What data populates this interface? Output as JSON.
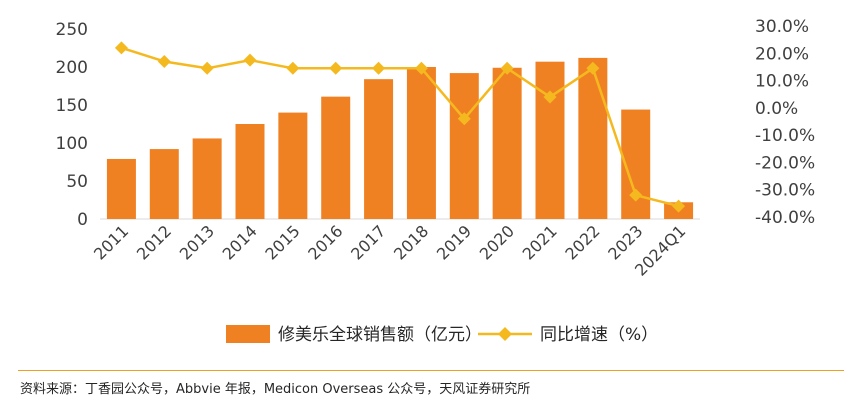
{
  "chart_data": {
    "type": "bar+line",
    "categories": [
      "2011",
      "2012",
      "2013",
      "2014",
      "2015",
      "2016",
      "2017",
      "2018",
      "2019",
      "2020",
      "2021",
      "2022",
      "2023",
      "2024Q1"
    ],
    "series": [
      {
        "name": "修美乐全球销售额（亿元）",
        "type": "bar",
        "axis": "left",
        "values": [
          79,
          92,
          106,
          125,
          140,
          161,
          184,
          200,
          192,
          199,
          207,
          212,
          144,
          22
        ]
      },
      {
        "name": "同比增速（%）",
        "type": "line",
        "axis": "right",
        "values": [
          22,
          17,
          14.5,
          17.5,
          14.5,
          14.5,
          14.5,
          14.5,
          -4,
          14.5,
          4,
          14.5,
          -32,
          -36
        ]
      }
    ],
    "y_left": {
      "min": 0,
      "max": 250,
      "ticks": [
        "0",
        "50",
        "100",
        "150",
        "200",
        "250"
      ],
      "tick_values": [
        0,
        50,
        100,
        150,
        200,
        250
      ]
    },
    "y_right": {
      "min": -40,
      "max": 30,
      "ticks": [
        "30.0%",
        "20.0%",
        "10.0%",
        "0.0%",
        "-10.0%",
        "-20.0%",
        "-30.0%",
        "-40.0%"
      ],
      "tick_values": [
        30,
        20,
        10,
        0,
        -10,
        -20,
        -30,
        -40
      ]
    },
    "colors": {
      "bar": "#F08122",
      "line": "#F5B920",
      "axis": "#D9D9D9",
      "divider": "#F0A020"
    },
    "legend_position": "bottom",
    "grid": false
  },
  "source_text": "资料来源：丁香园公众号，Abbvie 年报，Medicon Overseas 公众号，天风证券研究所"
}
